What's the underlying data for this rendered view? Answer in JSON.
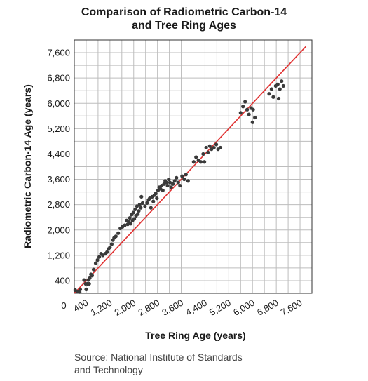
{
  "title_lines": [
    "Comparison of Radiometric Carbon-14",
    "and Tree Ring Ages"
  ],
  "source_lines": [
    "Source: National Institute of Standards",
    "and Technology"
  ],
  "chart_data": {
    "type": "scatter",
    "title": "Comparison of Radiometric Carbon-14 and Tree Ring Ages",
    "xlabel": "Tree Ring Age (years)",
    "ylabel": "Radiometric Carbon-14 Age (years)",
    "xlim": [
      0,
      8000
    ],
    "ylim": [
      0,
      8000
    ],
    "origin_label": "0",
    "x_ticks": [
      400,
      1200,
      2000,
      2800,
      3600,
      4400,
      5200,
      6000,
      6800,
      7600
    ],
    "x_tick_labels": [
      "400",
      "1,200",
      "2,000",
      "2,800",
      "3,600",
      "4,400",
      "5,200",
      "6,000",
      "6,800",
      "7,600"
    ],
    "y_ticks": [
      400,
      1200,
      2000,
      2800,
      3600,
      4400,
      5200,
      6000,
      6800,
      7600
    ],
    "y_tick_labels": [
      "400",
      "1,200",
      "2,000",
      "2,800",
      "3,600",
      "4,400",
      "5,200",
      "6,000",
      "6,800",
      "7,600"
    ],
    "grid": true,
    "grid_step": 400,
    "colors": {
      "points": "#3a3a3a",
      "line": "#e03030",
      "grid": "#bdbdbd",
      "frame": "#333333"
    },
    "reference_line": {
      "x": [
        0,
        7800
      ],
      "y": [
        0,
        7800
      ]
    },
    "points": [
      {
        "x": 30,
        "y": 100
      },
      {
        "x": 110,
        "y": 50
      },
      {
        "x": 200,
        "y": 120
      },
      {
        "x": 180,
        "y": 40
      },
      {
        "x": 330,
        "y": 420
      },
      {
        "x": 380,
        "y": 300
      },
      {
        "x": 400,
        "y": 120
      },
      {
        "x": 440,
        "y": 300
      },
      {
        "x": 470,
        "y": 420
      },
      {
        "x": 500,
        "y": 300
      },
      {
        "x": 520,
        "y": 480
      },
      {
        "x": 560,
        "y": 600
      },
      {
        "x": 600,
        "y": 560
      },
      {
        "x": 650,
        "y": 750
      },
      {
        "x": 720,
        "y": 950
      },
      {
        "x": 780,
        "y": 1050
      },
      {
        "x": 840,
        "y": 1150
      },
      {
        "x": 900,
        "y": 1250
      },
      {
        "x": 960,
        "y": 1200
      },
      {
        "x": 1040,
        "y": 1250
      },
      {
        "x": 1100,
        "y": 1300
      },
      {
        "x": 1150,
        "y": 1400
      },
      {
        "x": 1200,
        "y": 1450
      },
      {
        "x": 1260,
        "y": 1550
      },
      {
        "x": 1300,
        "y": 1680
      },
      {
        "x": 1340,
        "y": 1750
      },
      {
        "x": 1400,
        "y": 1800
      },
      {
        "x": 1480,
        "y": 1900
      },
      {
        "x": 1550,
        "y": 2050
      },
      {
        "x": 1620,
        "y": 2100
      },
      {
        "x": 1700,
        "y": 2150
      },
      {
        "x": 1760,
        "y": 2300
      },
      {
        "x": 1800,
        "y": 2180
      },
      {
        "x": 1840,
        "y": 2250
      },
      {
        "x": 1870,
        "y": 2380
      },
      {
        "x": 1900,
        "y": 2200
      },
      {
        "x": 1930,
        "y": 2480
      },
      {
        "x": 1960,
        "y": 2300
      },
      {
        "x": 1990,
        "y": 2550
      },
      {
        "x": 2020,
        "y": 2350
      },
      {
        "x": 2050,
        "y": 2650
      },
      {
        "x": 2080,
        "y": 2450
      },
      {
        "x": 2110,
        "y": 2750
      },
      {
        "x": 2140,
        "y": 2500
      },
      {
        "x": 2170,
        "y": 2600
      },
      {
        "x": 2200,
        "y": 2800
      },
      {
        "x": 2240,
        "y": 2700
      },
      {
        "x": 2260,
        "y": 3050
      },
      {
        "x": 2300,
        "y": 2850
      },
      {
        "x": 2380,
        "y": 2750
      },
      {
        "x": 2450,
        "y": 2850
      },
      {
        "x": 2500,
        "y": 2950
      },
      {
        "x": 2540,
        "y": 3000
      },
      {
        "x": 2580,
        "y": 2700
      },
      {
        "x": 2620,
        "y": 3050
      },
      {
        "x": 2660,
        "y": 2900
      },
      {
        "x": 2700,
        "y": 3100
      },
      {
        "x": 2740,
        "y": 3150
      },
      {
        "x": 2780,
        "y": 3000
      },
      {
        "x": 2820,
        "y": 3250
      },
      {
        "x": 2860,
        "y": 3350
      },
      {
        "x": 2900,
        "y": 3300
      },
      {
        "x": 2940,
        "y": 3400
      },
      {
        "x": 2980,
        "y": 3250
      },
      {
        "x": 3020,
        "y": 3450
      },
      {
        "x": 3060,
        "y": 3550
      },
      {
        "x": 3100,
        "y": 3500
      },
      {
        "x": 3140,
        "y": 3400
      },
      {
        "x": 3180,
        "y": 3600
      },
      {
        "x": 3220,
        "y": 3500
      },
      {
        "x": 3260,
        "y": 3350
      },
      {
        "x": 3320,
        "y": 3450
      },
      {
        "x": 3380,
        "y": 3550
      },
      {
        "x": 3440,
        "y": 3650
      },
      {
        "x": 3500,
        "y": 3500
      },
      {
        "x": 3560,
        "y": 3400
      },
      {
        "x": 3630,
        "y": 3700
      },
      {
        "x": 3700,
        "y": 3600
      },
      {
        "x": 3760,
        "y": 3750
      },
      {
        "x": 3830,
        "y": 3550
      },
      {
        "x": 4020,
        "y": 4150
      },
      {
        "x": 4100,
        "y": 4300
      },
      {
        "x": 4180,
        "y": 4200
      },
      {
        "x": 4260,
        "y": 4150
      },
      {
        "x": 4340,
        "y": 4400
      },
      {
        "x": 4380,
        "y": 4150
      },
      {
        "x": 4440,
        "y": 4600
      },
      {
        "x": 4500,
        "y": 4450
      },
      {
        "x": 4560,
        "y": 4650
      },
      {
        "x": 4620,
        "y": 4550
      },
      {
        "x": 4700,
        "y": 4600
      },
      {
        "x": 4780,
        "y": 4700
      },
      {
        "x": 4840,
        "y": 4550
      },
      {
        "x": 4920,
        "y": 4600
      },
      {
        "x": 5600,
        "y": 5700
      },
      {
        "x": 5680,
        "y": 5900
      },
      {
        "x": 5750,
        "y": 6050
      },
      {
        "x": 5820,
        "y": 5800
      },
      {
        "x": 5880,
        "y": 5650
      },
      {
        "x": 5950,
        "y": 5850
      },
      {
        "x": 6020,
        "y": 5800
      },
      {
        "x": 6080,
        "y": 5550
      },
      {
        "x": 6560,
        "y": 6300
      },
      {
        "x": 6640,
        "y": 6450
      },
      {
        "x": 6700,
        "y": 6200
      },
      {
        "x": 6780,
        "y": 6550
      },
      {
        "x": 6850,
        "y": 6600
      },
      {
        "x": 6920,
        "y": 6450
      },
      {
        "x": 6980,
        "y": 6700
      },
      {
        "x": 7040,
        "y": 6550
      },
      {
        "x": 6000,
        "y": 5400
      },
      {
        "x": 6880,
        "y": 6150
      }
    ]
  }
}
